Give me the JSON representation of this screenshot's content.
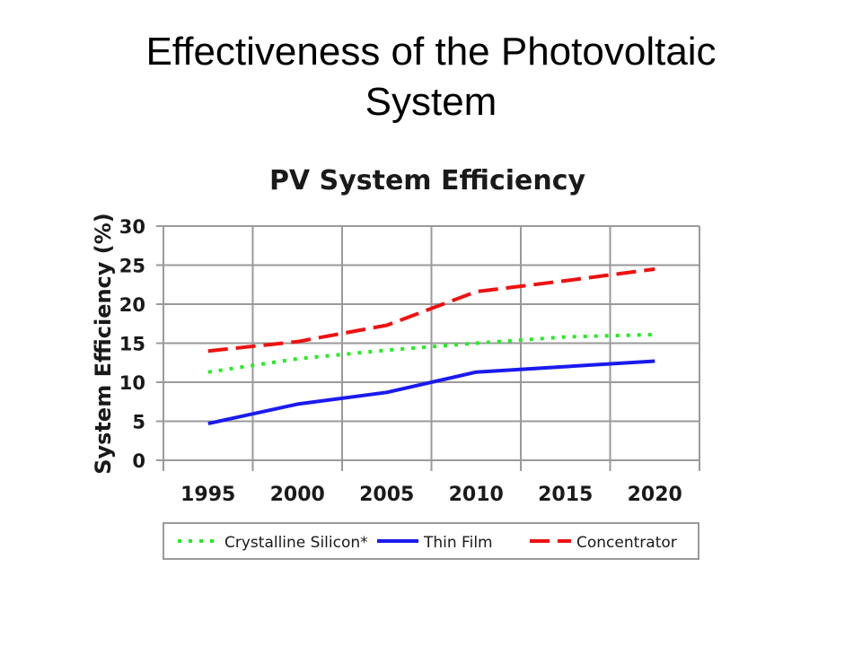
{
  "slide": {
    "title": "Effectiveness of the Photovoltaic\nSystem"
  },
  "chart_data": {
    "type": "line",
    "title": "PV System Efficiency",
    "xlabel": "",
    "ylabel": "System Efficiency (%)",
    "x": [
      1995,
      2000,
      2005,
      2010,
      2015,
      2020
    ],
    "x_tick_labels": [
      "1995",
      "2000",
      "2005",
      "2010",
      "2015",
      "2020"
    ],
    "xlim": [
      1992.5,
      2022.5
    ],
    "ylim": [
      0,
      30
    ],
    "y_ticks": [
      0,
      5,
      10,
      15,
      20,
      25,
      30
    ],
    "grid": true,
    "legend_position": "bottom",
    "series": [
      {
        "name": "Crystalline Silicon*",
        "style": "dotted",
        "color": "#22ee22",
        "values": [
          11.3,
          13.0,
          14.1,
          15.0,
          15.8,
          16.1
        ]
      },
      {
        "name": "Thin Film",
        "style": "solid",
        "color": "#1a1aee",
        "values": [
          4.7,
          7.2,
          8.7,
          11.3,
          12.0,
          12.7
        ]
      },
      {
        "name": "Concentrator",
        "style": "dashed",
        "color": "#ee1111",
        "values": [
          14.0,
          15.2,
          17.3,
          21.6,
          23.0,
          24.5
        ]
      }
    ]
  }
}
